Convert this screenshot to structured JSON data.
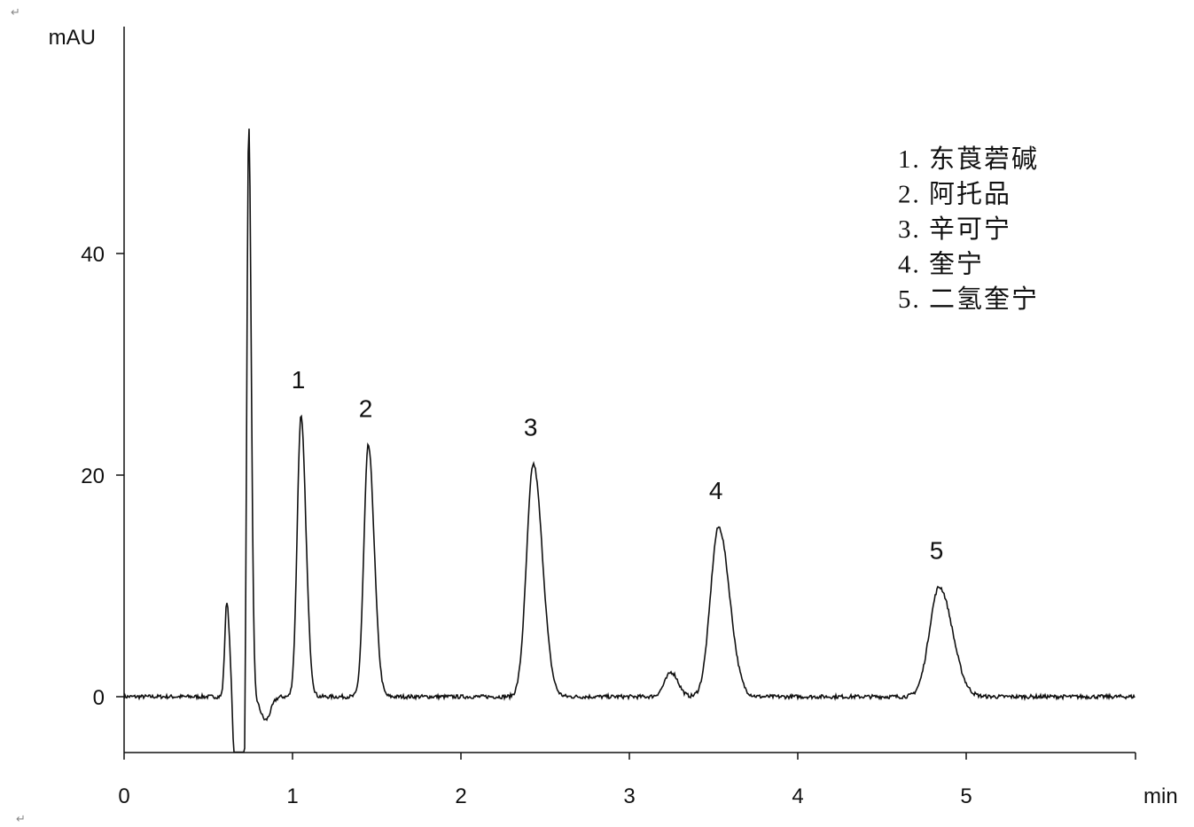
{
  "document_marks": {
    "top": "↵",
    "bottom": "↵"
  },
  "chart_data": {
    "type": "line",
    "title": "",
    "xlabel": "min",
    "ylabel": "mAU",
    "xlim": [
      0,
      6
    ],
    "ylim": [
      -5,
      60.5
    ],
    "xticks": [
      0,
      1,
      2,
      3,
      4,
      5
    ],
    "yticks": [
      0,
      20,
      40
    ],
    "grid": false,
    "baseline": 0,
    "trace_components": [
      {
        "t": 0.61,
        "height": 8.6,
        "sigma": 0.012
      },
      {
        "t": 0.685,
        "height": -40,
        "sigma": 0.018
      },
      {
        "t": 0.74,
        "height": 52,
        "sigma": 0.011
      },
      {
        "t": 0.84,
        "height": -2.1,
        "sigma": 0.03
      },
      {
        "t": 1.05,
        "height": 25.3,
        "sigma": 0.022
      },
      {
        "t": 1.45,
        "height": 22.7,
        "sigma": 0.026
      },
      {
        "t": 2.43,
        "height": 21.0,
        "sigma": 0.04
      },
      {
        "t": 3.25,
        "height": 2.2,
        "sigma": 0.04
      },
      {
        "t": 3.53,
        "height": 15.3,
        "sigma": 0.048
      },
      {
        "t": 4.84,
        "height": 9.9,
        "sigma": 0.058
      }
    ],
    "peak_labels": [
      {
        "label": "1",
        "t": 1.05,
        "height": 25.3
      },
      {
        "label": "2",
        "t": 1.45,
        "height": 22.7
      },
      {
        "label": "3",
        "t": 2.43,
        "height": 21.0
      },
      {
        "label": "4",
        "t": 3.53,
        "height": 15.3
      },
      {
        "label": "5",
        "t": 4.84,
        "height": 9.9
      }
    ],
    "legend": {
      "placement": "top-right",
      "entries": [
        "1. 东莨菪碱",
        "2. 阿托品",
        "3. 辛可宁",
        "4. 奎宁",
        "5. 二氢奎宁"
      ]
    }
  }
}
